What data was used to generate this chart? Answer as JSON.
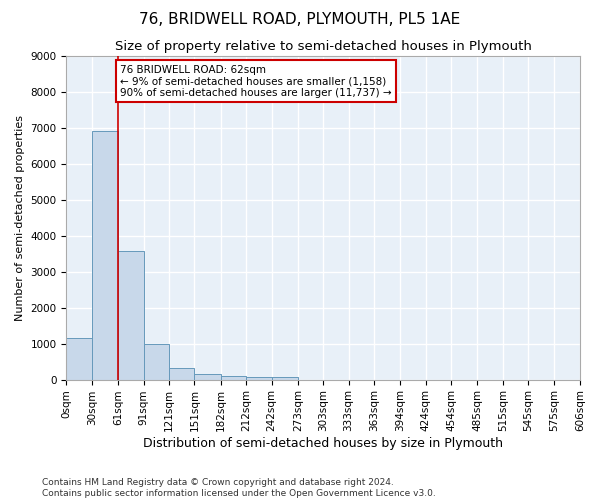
{
  "title": "76, BRIDWELL ROAD, PLYMOUTH, PL5 1AE",
  "subtitle": "Size of property relative to semi-detached houses in Plymouth",
  "xlabel": "Distribution of semi-detached houses by size in Plymouth",
  "ylabel": "Number of semi-detached properties",
  "footer_line1": "Contains HM Land Registry data © Crown copyright and database right 2024.",
  "footer_line2": "Contains public sector information licensed under the Open Government Licence v3.0.",
  "annotation_line1": "76 BRIDWELL ROAD: 62sqm",
  "annotation_line2": "← 9% of semi-detached houses are smaller (1,158)",
  "annotation_line3": "90% of semi-detached houses are larger (11,737) →",
  "bin_edges": [
    0,
    30,
    61,
    91,
    121,
    151,
    182,
    212,
    242,
    273,
    303,
    333,
    363,
    394,
    424,
    454,
    485,
    515,
    545,
    575,
    606
  ],
  "bar_heights": [
    1150,
    6900,
    3580,
    980,
    330,
    150,
    100,
    80,
    80,
    0,
    0,
    0,
    0,
    0,
    0,
    0,
    0,
    0,
    0,
    0
  ],
  "bar_color": "#c8d8ea",
  "bar_edge_color": "#6699bb",
  "vline_color": "#cc0000",
  "vline_x": 61,
  "annotation_box_color": "#cc0000",
  "background_color": "#e8f0f8",
  "grid_color": "#ffffff",
  "ylim": [
    0,
    9000
  ],
  "yticks": [
    0,
    1000,
    2000,
    3000,
    4000,
    5000,
    6000,
    7000,
    8000,
    9000
  ],
  "title_fontsize": 11,
  "subtitle_fontsize": 9.5,
  "ylabel_fontsize": 8,
  "xlabel_fontsize": 9,
  "tick_fontsize": 7.5,
  "annotation_fontsize": 7.5,
  "footer_fontsize": 6.5
}
